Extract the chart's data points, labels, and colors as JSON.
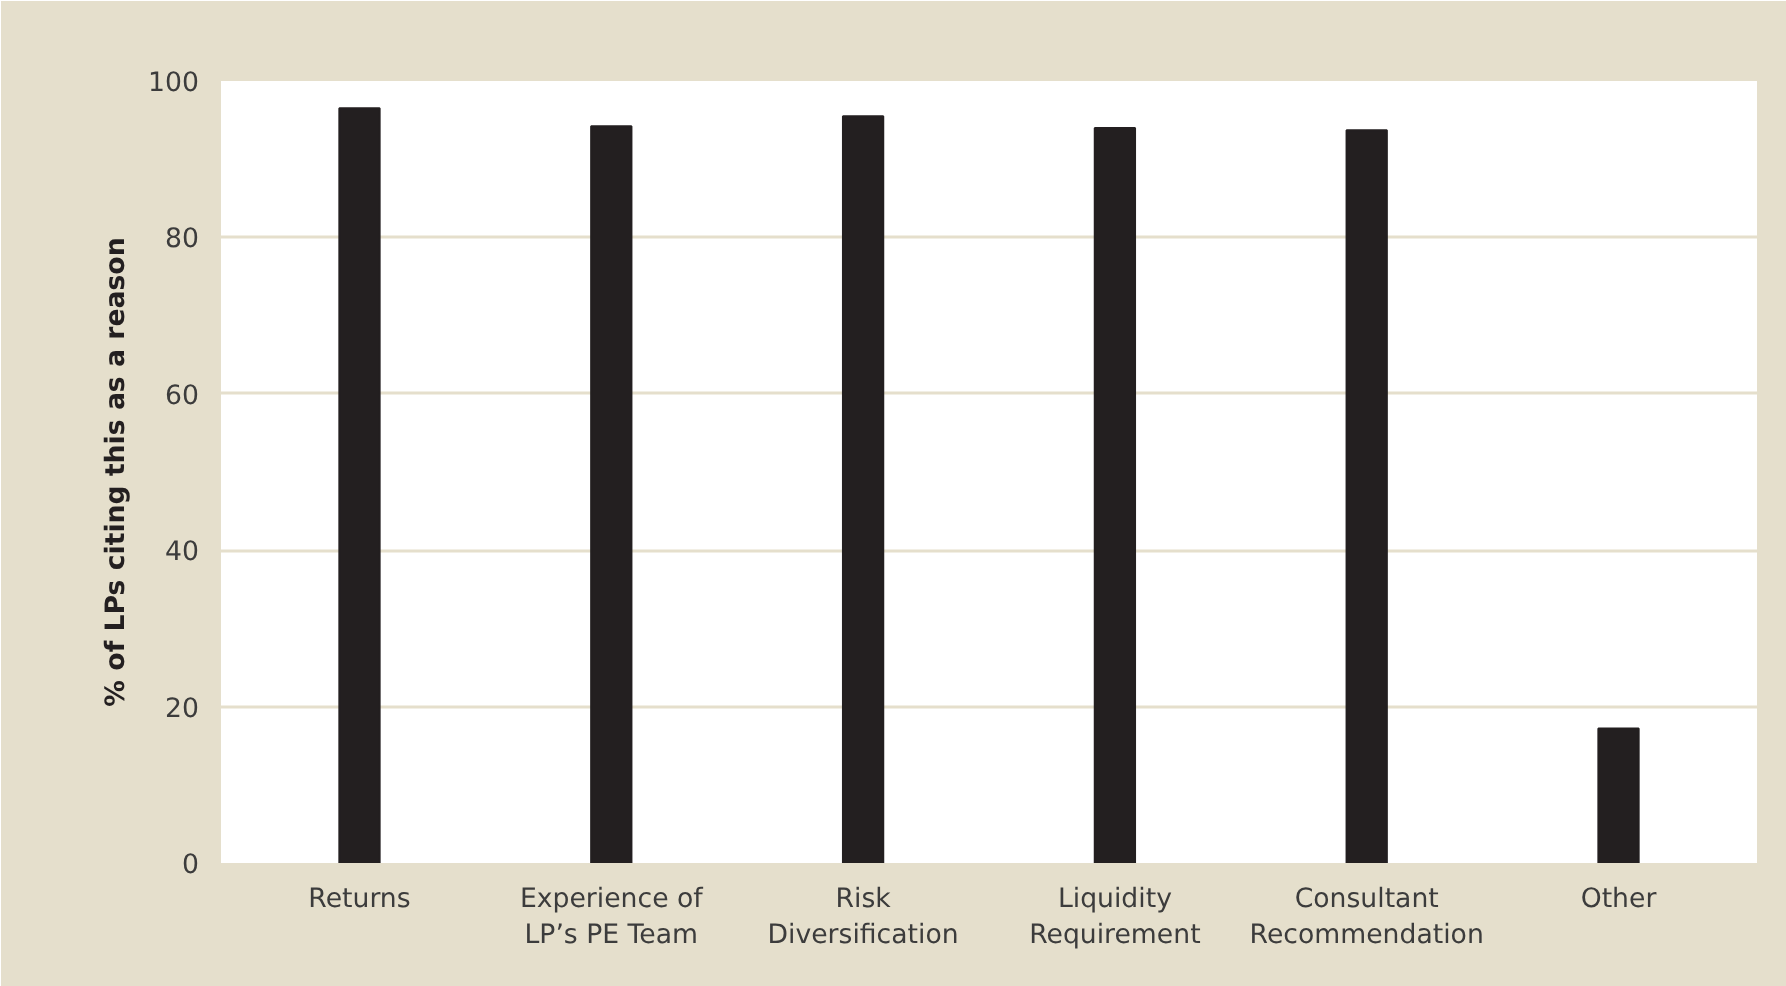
{
  "chart_data": {
    "type": "bar",
    "ylabel": "% of LPs citing this as a reason",
    "categories": [
      "Returns",
      "Experience of\nLP’s PE Team",
      "Risk\nDiversification",
      "Liquidity\nRequirement",
      "Consultant\nRecommendation",
      "Other"
    ],
    "values": [
      96.5,
      94.2,
      95.5,
      94.0,
      93.7,
      17.2
    ],
    "color": "#231f20",
    "ylim": [
      0,
      100
    ],
    "yticks": [
      0,
      20,
      40,
      60,
      80,
      100
    ],
    "grid": "y"
  }
}
